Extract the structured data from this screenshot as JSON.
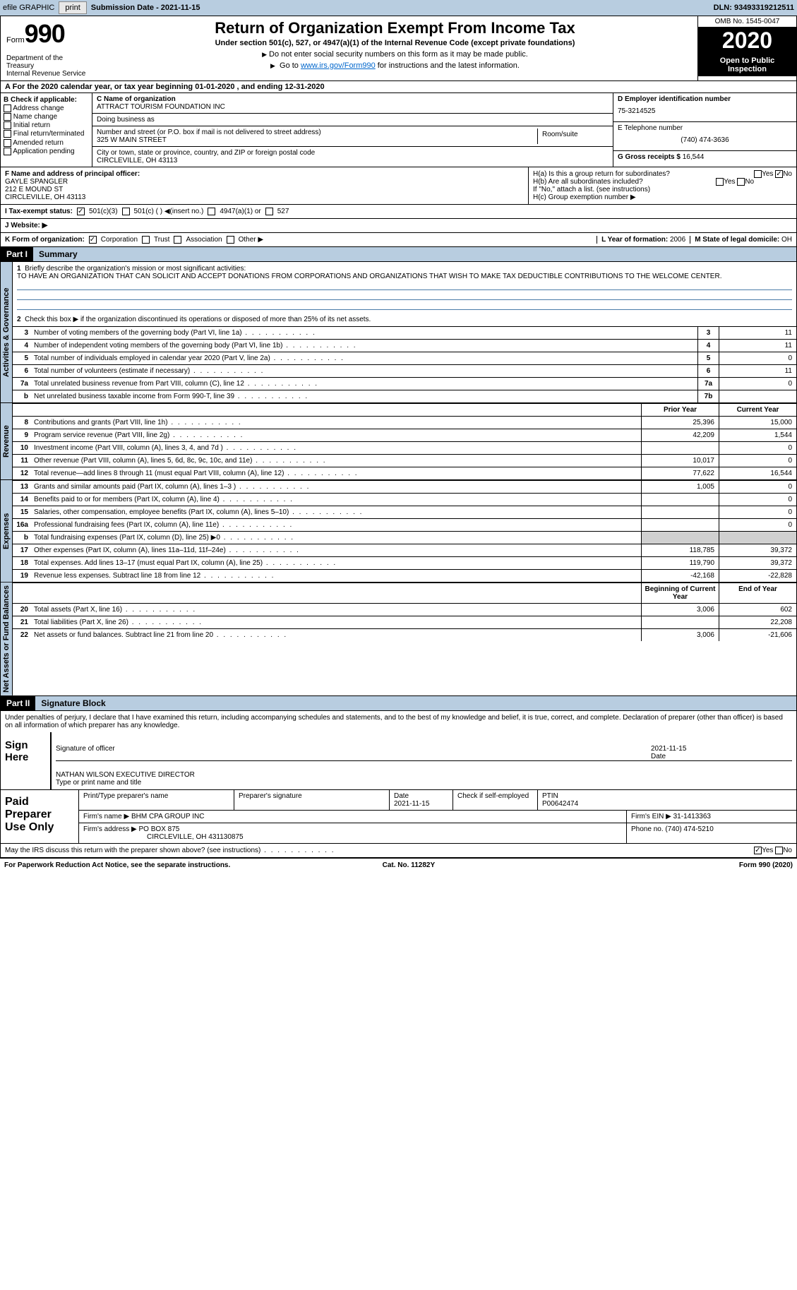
{
  "topbar": {
    "efile": "efile GRAPHIC",
    "print": "print",
    "subdate_label": "Submission Date - ",
    "subdate": "2021-11-15",
    "dln_label": "DLN: ",
    "dln": "93493319212511"
  },
  "header": {
    "form_label": "Form",
    "form_num": "990",
    "title": "Return of Organization Exempt From Income Tax",
    "subtitle": "Under section 501(c), 527, or 4947(a)(1) of the Internal Revenue Code (except private foundations)",
    "note1": "Do not enter social security numbers on this form as it may be made public.",
    "note2_pre": "Go to ",
    "note2_link": "www.irs.gov/Form990",
    "note2_post": " for instructions and the latest information.",
    "omb": "OMB No. 1545-0047",
    "year": "2020",
    "oti": "Open to Public Inspection",
    "dept": "Department of the Treasury\nInternal Revenue Service"
  },
  "period": "For the 2020 calendar year, or tax year beginning 01-01-2020    , and ending 12-31-2020",
  "box_b": {
    "label": "B Check if applicable:",
    "items": [
      "Address change",
      "Name change",
      "Initial return",
      "Final return/terminated",
      "Amended return",
      "Application pending"
    ]
  },
  "box_c": {
    "name_label": "C Name of organization",
    "name": "ATTRACT TOURISM FOUNDATION INC",
    "dba_label": "Doing business as",
    "dba": "",
    "addr_label": "Number and street (or P.O. box if mail is not delivered to street address)",
    "room_label": "Room/suite",
    "addr": "325 W MAIN STREET",
    "city_label": "City or town, state or province, country, and ZIP or foreign postal code",
    "city": "CIRCLEVILLE, OH   43113"
  },
  "box_d": {
    "label": "D Employer identification number",
    "ein": "75-3214525",
    "tel_label": "E Telephone number",
    "tel": "(740) 474-3636",
    "gross_label": "G Gross receipts $ ",
    "gross": "16,544"
  },
  "box_f": {
    "label": "F  Name and address of principal officer:",
    "name": "GAYLE SPANGLER",
    "addr1": "212 E MOUND ST",
    "addr2": "CIRCLEVILLE, OH  43113"
  },
  "box_h": {
    "ha": "H(a)  Is this a group return for subordinates?",
    "hb": "H(b)  Are all subordinates included?",
    "hb_note": "If \"No,\" attach a list. (see instructions)",
    "hc": "H(c)  Group exemption number ▶",
    "yes": "Yes",
    "no": "No"
  },
  "line_i": {
    "label": "I    Tax-exempt status:",
    "o1": "501(c)(3)",
    "o2": "501(c) (   ) ◀(insert no.)",
    "o3": "4947(a)(1) or",
    "o4": "527"
  },
  "line_j": {
    "label": "J   Website: ▶",
    "val": ""
  },
  "line_k": {
    "label": "K Form of organization:",
    "o1": "Corporation",
    "o2": "Trust",
    "o3": "Association",
    "o4": "Other ▶"
  },
  "line_l": {
    "label": "L Year of formation: ",
    "val": "2006"
  },
  "line_m": {
    "label": "M State of legal domicile: ",
    "val": "OH"
  },
  "parts": {
    "p1": "Part I",
    "p1t": "Summary",
    "p2": "Part II",
    "p2t": "Signature Block"
  },
  "summary": {
    "q1": "Briefly describe the organization's mission or most significant activities:",
    "q1a": "TO HAVE AN ORGANIZATION THAT CAN SOLICIT AND ACCEPT DONATIONS FROM CORPORATIONS AND ORGANIZATIONS THAT WISH TO MAKE TAX DEDUCTIBLE CONTRIBUTIONS TO THE WELCOME CENTER.",
    "q2": "Check this box ▶        if the organization discontinued its operations or disposed of more than 25% of its net assets.",
    "rows_ag": [
      {
        "n": "3",
        "t": "Number of voting members of the governing body (Part VI, line 1a)",
        "c": "3",
        "v": "11"
      },
      {
        "n": "4",
        "t": "Number of independent voting members of the governing body (Part VI, line 1b)",
        "c": "4",
        "v": "11"
      },
      {
        "n": "5",
        "t": "Total number of individuals employed in calendar year 2020 (Part V, line 2a)",
        "c": "5",
        "v": "0"
      },
      {
        "n": "6",
        "t": "Total number of volunteers (estimate if necessary)",
        "c": "6",
        "v": "11"
      },
      {
        "n": "7a",
        "t": "Total unrelated business revenue from Part VIII, column (C), line 12",
        "c": "7a",
        "v": "0"
      },
      {
        "n": "b",
        "t": "Net unrelated business taxable income from Form 990-T, line 39",
        "c": "7b",
        "v": ""
      }
    ],
    "prior": "Prior Year",
    "current": "Current Year",
    "rows_rev": [
      {
        "n": "8",
        "t": "Contributions and grants (Part VIII, line 1h)",
        "p": "25,396",
        "c": "15,000"
      },
      {
        "n": "9",
        "t": "Program service revenue (Part VIII, line 2g)",
        "p": "42,209",
        "c": "1,544"
      },
      {
        "n": "10",
        "t": "Investment income (Part VIII, column (A), lines 3, 4, and 7d )",
        "p": "",
        "c": "0"
      },
      {
        "n": "11",
        "t": "Other revenue (Part VIII, column (A), lines 5, 6d, 8c, 9c, 10c, and 11e)",
        "p": "10,017",
        "c": "0"
      },
      {
        "n": "12",
        "t": "Total revenue—add lines 8 through 11 (must equal Part VIII, column (A), line 12)",
        "p": "77,622",
        "c": "16,544"
      }
    ],
    "rows_exp": [
      {
        "n": "13",
        "t": "Grants and similar amounts paid (Part IX, column (A), lines 1–3 )",
        "p": "1,005",
        "c": "0"
      },
      {
        "n": "14",
        "t": "Benefits paid to or for members (Part IX, column (A), line 4)",
        "p": "",
        "c": "0"
      },
      {
        "n": "15",
        "t": "Salaries, other compensation, employee benefits (Part IX, column (A), lines 5–10)",
        "p": "",
        "c": "0"
      },
      {
        "n": "16a",
        "t": "Professional fundraising fees (Part IX, column (A), line 11e)",
        "p": "",
        "c": "0"
      },
      {
        "n": "b",
        "t": "Total fundraising expenses (Part IX, column (D), line 25) ▶0",
        "p": "",
        "c": "",
        "shade": true
      },
      {
        "n": "17",
        "t": "Other expenses (Part IX, column (A), lines 11a–11d, 11f–24e)",
        "p": "118,785",
        "c": "39,372"
      },
      {
        "n": "18",
        "t": "Total expenses. Add lines 13–17 (must equal Part IX, column (A), line 25)",
        "p": "119,790",
        "c": "39,372"
      },
      {
        "n": "19",
        "t": "Revenue less expenses. Subtract line 18 from line 12",
        "p": "-42,168",
        "c": "-22,828"
      }
    ],
    "boy": "Beginning of Current Year",
    "eoy": "End of Year",
    "rows_na": [
      {
        "n": "20",
        "t": "Total assets (Part X, line 16)",
        "p": "3,006",
        "c": "602"
      },
      {
        "n": "21",
        "t": "Total liabilities (Part X, line 26)",
        "p": "",
        "c": "22,208"
      },
      {
        "n": "22",
        "t": "Net assets or fund balances. Subtract line 21 from line 20",
        "p": "3,006",
        "c": "-21,606"
      }
    ]
  },
  "vlabels": {
    "ag": "Activities & Governance",
    "rev": "Revenue",
    "exp": "Expenses",
    "na": "Net Assets or Fund Balances"
  },
  "sig": {
    "decl": "Under penalties of perjury, I declare that I have examined this return, including accompanying schedules and statements, and to the best of my knowledge and belief, it is true, correct, and complete. Declaration of preparer (other than officer) is based on all information of which preparer has any knowledge.",
    "sign_here": "Sign Here",
    "sig_officer": "Signature of officer",
    "date": "Date",
    "sig_date": "2021-11-15",
    "name_title": "NATHAN WILSON  EXECUTIVE DIRECTOR",
    "type_name": "Type or print name and title",
    "paid": "Paid Preparer Use Only",
    "pprep": "Print/Type preparer's name",
    "psig": "Preparer's signature",
    "pdate": "Date",
    "pdate_v": "2021-11-15",
    "chk_se": "Check         if self-employed",
    "ptin_l": "PTIN",
    "ptin": "P00642474",
    "firm_l": "Firm's name    ▶ ",
    "firm": "BHM CPA GROUP INC",
    "fein_l": "Firm's EIN ▶ ",
    "fein": "31-1413363",
    "faddr_l": "Firm's address ▶ ",
    "faddr": "PO BOX 875",
    "faddr2": "CIRCLEVILLE, OH  431130875",
    "fphone_l": "Phone no. ",
    "fphone": "(740) 474-5210",
    "may": "May the IRS discuss this return with the preparer shown above? (see instructions)",
    "yes": "Yes",
    "no": "No"
  },
  "footer": {
    "pra": "For Paperwork Reduction Act Notice, see the separate instructions.",
    "cat": "Cat. No. 11282Y",
    "form": "Form 990 (2020)"
  }
}
